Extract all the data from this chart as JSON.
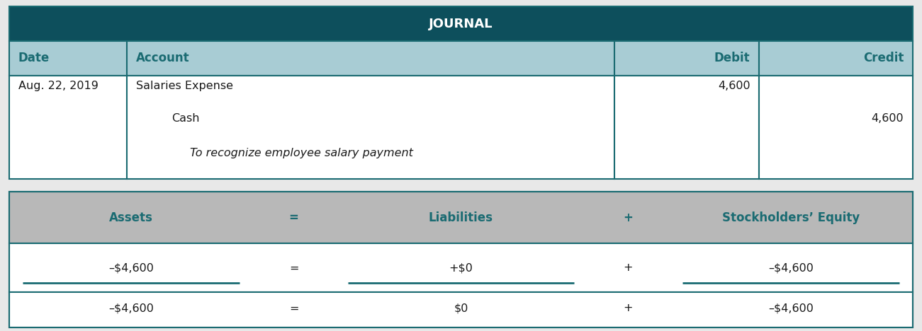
{
  "journal_title": "JOURNAL",
  "header_bg": "#0d4f5c",
  "subheader_bg": "#a8ccd4",
  "white_bg": "#ffffff",
  "gray_bg": "#b8b8b8",
  "teal_text": "#1a6b72",
  "dark_text": "#1a1a1a",
  "border_color": "#1a6b72",
  "fig_bg": "#e8e8e8",
  "col_headers": [
    "Date",
    "Account",
    "Debit",
    "Credit"
  ],
  "date": "Aug. 22, 2019",
  "account_line1": "Salaries Expense",
  "account_line2": "    Cash",
  "account_line3": "    To recognize employee salary payment",
  "debit_value": "4,600",
  "credit_value": "4,600",
  "eq_headers": [
    "Assets",
    "=",
    "Liabilities",
    "+",
    "Stockholders’ Equity"
  ],
  "eq_row1": [
    "–$4,600",
    "=",
    "+$0",
    "+",
    "–$4,600"
  ],
  "eq_row2": [
    "–$4,600",
    "=",
    "$0",
    "+",
    "–$4,600"
  ],
  "title_fontsize": 13,
  "header_fontsize": 12,
  "body_fontsize": 11.5
}
